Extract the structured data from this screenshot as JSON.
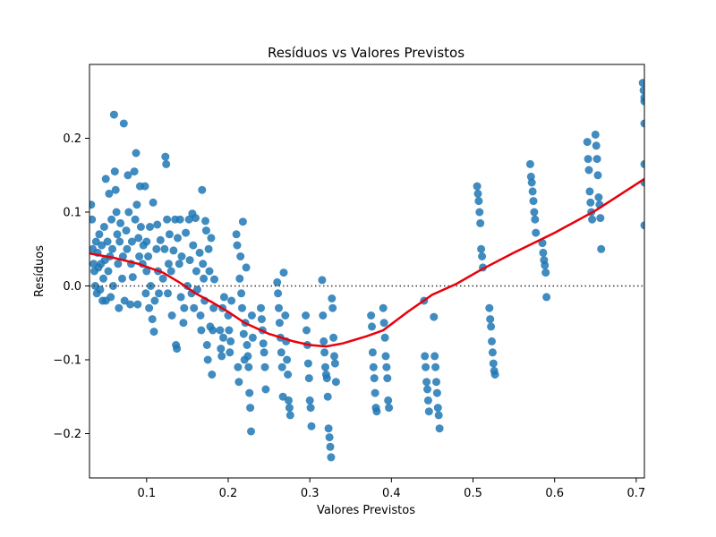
{
  "chart_data": {
    "type": "scatter",
    "title": "Resíduos vs Valores Previstos",
    "xlabel": "Valores Previstos",
    "ylabel": "Resíduos",
    "xlim": [
      0.03,
      0.71
    ],
    "ylim": [
      -0.26,
      0.3
    ],
    "xticks": [
      0.1,
      0.2,
      0.3,
      0.4,
      0.5,
      0.6,
      0.7
    ],
    "yticks": [
      -0.2,
      -0.1,
      0.0,
      0.1,
      0.2
    ],
    "xtick_labels": [
      "0.1",
      "0.2",
      "0.3",
      "0.4",
      "0.5",
      "0.6",
      "0.7"
    ],
    "ytick_labels": [
      "−0.2",
      "−0.1",
      "0.0",
      "0.1",
      "0.2"
    ],
    "grid": false,
    "colors": {
      "points": "#1f77b4",
      "lowess": "#e8000b",
      "reference": "#333333"
    },
    "reference_line": {
      "y": 0.0,
      "style": "dotted"
    },
    "points": [
      [
        0.032,
        0.11
      ],
      [
        0.033,
        0.09
      ],
      [
        0.034,
        0.05
      ],
      [
        0.035,
        0.03
      ],
      [
        0.036,
        0.02
      ],
      [
        0.037,
        0.0
      ],
      [
        0.038,
        0.06
      ],
      [
        0.039,
        -0.01
      ],
      [
        0.04,
        0.045
      ],
      [
        0.041,
        0.025
      ],
      [
        0.042,
        0.07
      ],
      [
        0.043,
        -0.005
      ],
      [
        0.044,
        0.03
      ],
      [
        0.045,
        0.055
      ],
      [
        0.046,
        -0.02
      ],
      [
        0.047,
        0.01
      ],
      [
        0.048,
        0.08
      ],
      [
        0.049,
        0.035
      ],
      [
        0.05,
        0.145
      ],
      [
        0.05,
        -0.02
      ],
      [
        0.052,
        0.06
      ],
      [
        0.053,
        0.02
      ],
      [
        0.054,
        0.125
      ],
      [
        0.055,
        0.04
      ],
      [
        0.056,
        -0.015
      ],
      [
        0.057,
        0.09
      ],
      [
        0.058,
        0.05
      ],
      [
        0.059,
        0.0
      ],
      [
        0.06,
        0.232
      ],
      [
        0.061,
        0.155
      ],
      [
        0.062,
        0.13
      ],
      [
        0.063,
        0.1
      ],
      [
        0.064,
        0.07
      ],
      [
        0.065,
        0.03
      ],
      [
        0.066,
        -0.03
      ],
      [
        0.067,
        0.06
      ],
      [
        0.068,
        0.085
      ],
      [
        0.07,
        0.01
      ],
      [
        0.071,
        0.04
      ],
      [
        0.072,
        0.22
      ],
      [
        0.073,
        -0.02
      ],
      [
        0.075,
        0.075
      ],
      [
        0.076,
        0.05
      ],
      [
        0.077,
        0.15
      ],
      [
        0.078,
        0.1
      ],
      [
        0.08,
        -0.025
      ],
      [
        0.081,
        0.03
      ],
      [
        0.082,
        0.06
      ],
      [
        0.083,
        0.012
      ],
      [
        0.085,
        0.155
      ],
      [
        0.086,
        0.09
      ],
      [
        0.087,
        0.18
      ],
      [
        0.088,
        0.11
      ],
      [
        0.089,
        -0.025
      ],
      [
        0.09,
        0.065
      ],
      [
        0.091,
        0.04
      ],
      [
        0.092,
        0.135
      ],
      [
        0.093,
        0.08
      ],
      [
        0.095,
        0.03
      ],
      [
        0.096,
        0.055
      ],
      [
        0.098,
        0.135
      ],
      [
        0.099,
        -0.01
      ],
      [
        0.1,
        0.06
      ],
      [
        0.1,
        0.02
      ],
      [
        0.102,
        0.04
      ],
      [
        0.103,
        -0.03
      ],
      [
        0.104,
        0.08
      ],
      [
        0.105,
        0.0
      ],
      [
        0.107,
        -0.045
      ],
      [
        0.108,
        0.113
      ],
      [
        0.109,
        -0.062
      ],
      [
        0.11,
        -0.02
      ],
      [
        0.112,
        0.05
      ],
      [
        0.113,
        0.083
      ],
      [
        0.114,
        0.02
      ],
      [
        0.115,
        -0.01
      ],
      [
        0.117,
        0.062
      ],
      [
        0.12,
        0.01
      ],
      [
        0.122,
        0.05
      ],
      [
        0.123,
        0.175
      ],
      [
        0.124,
        0.165
      ],
      [
        0.125,
        0.09
      ],
      [
        0.126,
        -0.01
      ],
      [
        0.127,
        0.03
      ],
      [
        0.128,
        0.07
      ],
      [
        0.13,
        0.02
      ],
      [
        0.131,
        -0.04
      ],
      [
        0.133,
        0.048
      ],
      [
        0.135,
        0.09
      ],
      [
        0.136,
        -0.08
      ],
      [
        0.137,
        -0.085
      ],
      [
        0.138,
        0.065
      ],
      [
        0.14,
        0.03
      ],
      [
        0.141,
        0.09
      ],
      [
        0.142,
        -0.015
      ],
      [
        0.143,
        0.04
      ],
      [
        0.145,
        -0.05
      ],
      [
        0.146,
        -0.03
      ],
      [
        0.148,
        0.072
      ],
      [
        0.15,
        0.0
      ],
      [
        0.152,
        0.09
      ],
      [
        0.153,
        0.035
      ],
      [
        0.155,
        -0.01
      ],
      [
        0.156,
        0.098
      ],
      [
        0.157,
        0.055
      ],
      [
        0.158,
        -0.03
      ],
      [
        0.16,
        0.092
      ],
      [
        0.161,
        0.02
      ],
      [
        0.162,
        -0.005
      ],
      [
        0.165,
        0.045
      ],
      [
        0.166,
        -0.04
      ],
      [
        0.167,
        -0.06
      ],
      [
        0.168,
        0.13
      ],
      [
        0.169,
        0.03
      ],
      [
        0.17,
        0.01
      ],
      [
        0.171,
        -0.02
      ],
      [
        0.172,
        0.088
      ],
      [
        0.173,
        0.075
      ],
      [
        0.174,
        -0.08
      ],
      [
        0.175,
        -0.1
      ],
      [
        0.176,
        0.05
      ],
      [
        0.177,
        0.02
      ],
      [
        0.178,
        -0.055
      ],
      [
        0.179,
        0.065
      ],
      [
        0.18,
        -0.12
      ],
      [
        0.181,
        -0.06
      ],
      [
        0.182,
        -0.03
      ],
      [
        0.183,
        0.009
      ],
      [
        0.19,
        -0.06
      ],
      [
        0.191,
        -0.085
      ],
      [
        0.192,
        -0.095
      ],
      [
        0.193,
        -0.03
      ],
      [
        0.194,
        -0.07
      ],
      [
        0.195,
        -0.015
      ],
      [
        0.2,
        -0.04
      ],
      [
        0.201,
        -0.06
      ],
      [
        0.202,
        -0.09
      ],
      [
        0.203,
        -0.075
      ],
      [
        0.204,
        -0.02
      ],
      [
        0.21,
        0.07
      ],
      [
        0.211,
        0.055
      ],
      [
        0.212,
        -0.11
      ],
      [
        0.213,
        -0.13
      ],
      [
        0.214,
        0.01
      ],
      [
        0.215,
        0.04
      ],
      [
        0.216,
        -0.01
      ],
      [
        0.217,
        -0.03
      ],
      [
        0.218,
        0.087
      ],
      [
        0.219,
        -0.065
      ],
      [
        0.22,
        -0.1
      ],
      [
        0.221,
        -0.05
      ],
      [
        0.222,
        0.025
      ],
      [
        0.223,
        -0.08
      ],
      [
        0.224,
        -0.095
      ],
      [
        0.225,
        -0.11
      ],
      [
        0.226,
        -0.145
      ],
      [
        0.227,
        -0.165
      ],
      [
        0.228,
        -0.197
      ],
      [
        0.229,
        -0.04
      ],
      [
        0.23,
        -0.07
      ],
      [
        0.24,
        -0.03
      ],
      [
        0.241,
        -0.045
      ],
      [
        0.242,
        -0.06
      ],
      [
        0.243,
        -0.078
      ],
      [
        0.244,
        -0.09
      ],
      [
        0.245,
        -0.11
      ],
      [
        0.246,
        -0.14
      ],
      [
        0.26,
        0.005
      ],
      [
        0.261,
        -0.01
      ],
      [
        0.262,
        -0.03
      ],
      [
        0.263,
        -0.05
      ],
      [
        0.264,
        -0.07
      ],
      [
        0.265,
        -0.09
      ],
      [
        0.266,
        -0.11
      ],
      [
        0.267,
        -0.15
      ],
      [
        0.268,
        0.018
      ],
      [
        0.27,
        -0.04
      ],
      [
        0.271,
        -0.075
      ],
      [
        0.272,
        -0.1
      ],
      [
        0.273,
        -0.12
      ],
      [
        0.274,
        -0.155
      ],
      [
        0.275,
        -0.165
      ],
      [
        0.276,
        -0.175
      ],
      [
        0.295,
        -0.04
      ],
      [
        0.296,
        -0.06
      ],
      [
        0.297,
        -0.08
      ],
      [
        0.298,
        -0.105
      ],
      [
        0.299,
        -0.125
      ],
      [
        0.3,
        -0.155
      ],
      [
        0.301,
        -0.165
      ],
      [
        0.302,
        -0.19
      ],
      [
        0.315,
        0.008
      ],
      [
        0.316,
        -0.04
      ],
      [
        0.317,
        -0.075
      ],
      [
        0.318,
        -0.09
      ],
      [
        0.319,
        -0.11
      ],
      [
        0.32,
        -0.12
      ],
      [
        0.321,
        -0.125
      ],
      [
        0.322,
        -0.15
      ],
      [
        0.323,
        -0.193
      ],
      [
        0.324,
        -0.205
      ],
      [
        0.325,
        -0.218
      ],
      [
        0.326,
        -0.232
      ],
      [
        0.327,
        -0.017
      ],
      [
        0.328,
        -0.03
      ],
      [
        0.329,
        -0.07
      ],
      [
        0.33,
        -0.095
      ],
      [
        0.331,
        -0.105
      ],
      [
        0.332,
        -0.13
      ],
      [
        0.375,
        -0.04
      ],
      [
        0.376,
        -0.055
      ],
      [
        0.377,
        -0.09
      ],
      [
        0.378,
        -0.11
      ],
      [
        0.379,
        -0.125
      ],
      [
        0.38,
        -0.145
      ],
      [
        0.381,
        -0.165
      ],
      [
        0.382,
        -0.17
      ],
      [
        0.39,
        -0.03
      ],
      [
        0.391,
        -0.05
      ],
      [
        0.392,
        -0.07
      ],
      [
        0.393,
        -0.095
      ],
      [
        0.394,
        -0.11
      ],
      [
        0.395,
        -0.125
      ],
      [
        0.396,
        -0.155
      ],
      [
        0.397,
        -0.165
      ],
      [
        0.44,
        -0.02
      ],
      [
        0.441,
        -0.095
      ],
      [
        0.442,
        -0.11
      ],
      [
        0.443,
        -0.13
      ],
      [
        0.444,
        -0.14
      ],
      [
        0.445,
        -0.155
      ],
      [
        0.446,
        -0.17
      ],
      [
        0.452,
        -0.042
      ],
      [
        0.453,
        -0.095
      ],
      [
        0.454,
        -0.11
      ],
      [
        0.455,
        -0.13
      ],
      [
        0.456,
        -0.145
      ],
      [
        0.457,
        -0.165
      ],
      [
        0.458,
        -0.175
      ],
      [
        0.459,
        -0.193
      ],
      [
        0.505,
        0.135
      ],
      [
        0.506,
        0.125
      ],
      [
        0.507,
        0.115
      ],
      [
        0.508,
        0.1
      ],
      [
        0.509,
        0.085
      ],
      [
        0.51,
        0.05
      ],
      [
        0.511,
        0.04
      ],
      [
        0.512,
        0.025
      ],
      [
        0.52,
        -0.03
      ],
      [
        0.521,
        -0.045
      ],
      [
        0.522,
        -0.055
      ],
      [
        0.523,
        -0.075
      ],
      [
        0.524,
        -0.09
      ],
      [
        0.525,
        -0.105
      ],
      [
        0.526,
        -0.115
      ],
      [
        0.527,
        -0.12
      ],
      [
        0.57,
        0.165
      ],
      [
        0.571,
        0.148
      ],
      [
        0.572,
        0.14
      ],
      [
        0.573,
        0.128
      ],
      [
        0.574,
        0.115
      ],
      [
        0.575,
        0.1
      ],
      [
        0.576,
        0.09
      ],
      [
        0.577,
        0.072
      ],
      [
        0.585,
        0.058
      ],
      [
        0.586,
        0.045
      ],
      [
        0.587,
        0.035
      ],
      [
        0.588,
        0.028
      ],
      [
        0.589,
        0.018
      ],
      [
        0.59,
        -0.015
      ],
      [
        0.64,
        0.195
      ],
      [
        0.641,
        0.172
      ],
      [
        0.642,
        0.157
      ],
      [
        0.643,
        0.128
      ],
      [
        0.644,
        0.113
      ],
      [
        0.645,
        0.1
      ],
      [
        0.646,
        0.09
      ],
      [
        0.65,
        0.205
      ],
      [
        0.651,
        0.19
      ],
      [
        0.652,
        0.172
      ],
      [
        0.653,
        0.15
      ],
      [
        0.654,
        0.12
      ],
      [
        0.655,
        0.11
      ],
      [
        0.656,
        0.092
      ],
      [
        0.657,
        0.05
      ],
      [
        0.708,
        0.275
      ],
      [
        0.709,
        0.265
      ],
      [
        0.71,
        0.255
      ],
      [
        0.71,
        0.25
      ],
      [
        0.71,
        0.22
      ],
      [
        0.71,
        0.165
      ],
      [
        0.71,
        0.14
      ],
      [
        0.71,
        0.082
      ]
    ],
    "lowess": [
      [
        0.03,
        0.044
      ],
      [
        0.06,
        0.038
      ],
      [
        0.09,
        0.03
      ],
      [
        0.12,
        0.018
      ],
      [
        0.14,
        0.005
      ],
      [
        0.16,
        -0.01
      ],
      [
        0.18,
        -0.022
      ],
      [
        0.2,
        -0.035
      ],
      [
        0.22,
        -0.05
      ],
      [
        0.25,
        -0.065
      ],
      [
        0.28,
        -0.075
      ],
      [
        0.3,
        -0.08
      ],
      [
        0.32,
        -0.082
      ],
      [
        0.34,
        -0.078
      ],
      [
        0.37,
        -0.068
      ],
      [
        0.39,
        -0.06
      ],
      [
        0.42,
        -0.035
      ],
      [
        0.45,
        -0.012
      ],
      [
        0.48,
        0.003
      ],
      [
        0.51,
        0.022
      ],
      [
        0.55,
        0.045
      ],
      [
        0.6,
        0.072
      ],
      [
        0.65,
        0.102
      ],
      [
        0.71,
        0.145
      ]
    ]
  }
}
